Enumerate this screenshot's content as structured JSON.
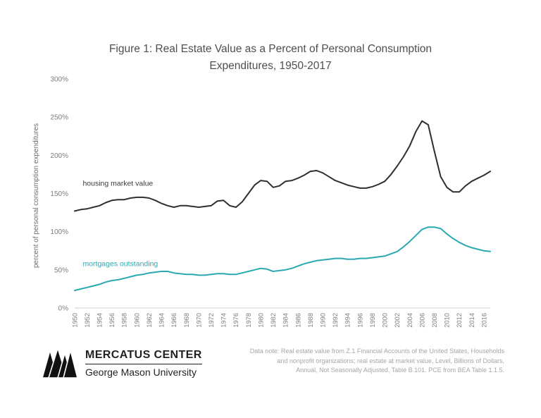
{
  "page": {
    "title_line1": "Figure 1: Real Estate Value as a Percent of Personal Consumption",
    "title_line2": "Expenditures, 1950-2017"
  },
  "footer": {
    "logo_title": "MERCATUS CENTER",
    "logo_subtitle": "George Mason University",
    "data_note_lines": [
      "Data note: Real estate value from  Z.1 Financial Accounts of the United States, Households",
      "and nonprofit organizations; real estate at market value, Level, Billions of Dollars,",
      "Annual, Not Seasonally Adjusted, Table B.101. PCE from BEA Table 1.1.5."
    ]
  },
  "chart_data": {
    "type": "line",
    "title": "Figure 1: Real Estate Value as a Percent of Personal Consumption Expenditures, 1950-2017",
    "xlabel": "",
    "ylabel": "percent of personal consumption expenditures",
    "ylim": [
      0,
      300
    ],
    "xlim": [
      1950,
      2017
    ],
    "y_ticks": [
      0,
      50,
      100,
      150,
      200,
      250,
      300
    ],
    "x_tick_years": [
      1950,
      1952,
      1954,
      1956,
      1958,
      1960,
      1962,
      1964,
      1966,
      1968,
      1970,
      1972,
      1974,
      1976,
      1978,
      1980,
      1982,
      1984,
      1986,
      1988,
      1990,
      1992,
      1994,
      1996,
      1998,
      2000,
      2002,
      2004,
      2006,
      2008,
      2010,
      2012,
      2014,
      2016
    ],
    "grid": false,
    "legend_position": "inline-labels",
    "axis_color": "#cfcfcf",
    "tick_label_color": "#7d7d7d",
    "series": [
      {
        "name": "housing market value",
        "color": "#2f2f2f",
        "label_color": "#3a3a3a",
        "label_at": {
          "x": 1951.3,
          "y": 160
        },
        "x_start": 1950,
        "x_step": 1,
        "values": [
          127,
          129,
          130,
          132,
          134,
          138,
          141,
          142,
          142,
          144,
          145,
          145,
          144,
          141,
          137,
          134,
          132,
          134,
          134,
          133,
          132,
          133,
          134,
          140,
          141,
          134,
          132,
          139,
          150,
          161,
          167,
          166,
          158,
          160,
          166,
          167,
          170,
          174,
          179,
          180,
          177,
          172,
          167,
          164,
          161,
          159,
          157,
          157,
          159,
          162,
          166,
          175,
          186,
          198,
          212,
          231,
          245,
          240,
          205,
          172,
          158,
          152,
          152,
          160,
          166,
          170,
          174,
          179
        ]
      },
      {
        "name": "mortgages outstanding",
        "color": "#2aa9b2",
        "label_color": "#2aa9b2",
        "label_at": {
          "x": 1951.3,
          "y": 55
        },
        "x_start": 1950,
        "x_step": 1,
        "values": [
          23,
          25,
          27,
          29,
          31,
          34,
          36,
          37,
          39,
          41,
          43,
          44,
          46,
          47,
          48,
          48,
          46,
          45,
          44,
          44,
          43,
          43,
          44,
          45,
          45,
          44,
          44,
          46,
          48,
          50,
          52,
          51,
          48,
          49,
          50,
          52,
          55,
          58,
          60,
          62,
          63,
          64,
          65,
          65,
          64,
          64,
          65,
          65,
          66,
          67,
          68,
          71,
          74,
          80,
          87,
          95,
          103,
          106,
          106,
          104,
          97,
          91,
          86,
          82,
          79,
          77,
          75,
          74
        ]
      }
    ]
  }
}
